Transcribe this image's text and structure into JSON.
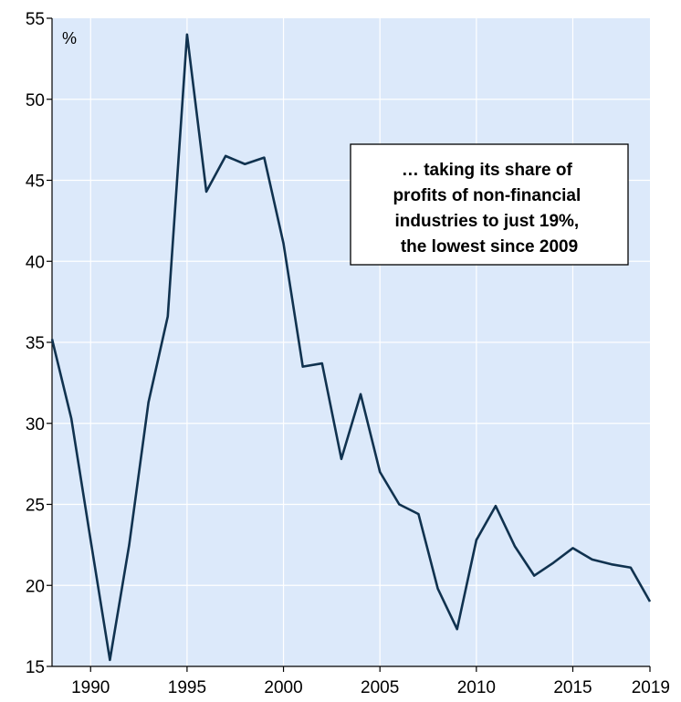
{
  "chart_data": {
    "type": "line",
    "unit": "%",
    "colors": {
      "plot_background": "#dce9fa",
      "line": "#10324f",
      "grid": "#ffffff"
    },
    "x": [
      1988,
      1989,
      1990,
      1991,
      1992,
      1993,
      1994,
      1995,
      1996,
      1997,
      1998,
      1999,
      2000,
      2001,
      2002,
      2003,
      2004,
      2005,
      2006,
      2007,
      2008,
      2009,
      2010,
      2011,
      2012,
      2013,
      2014,
      2015,
      2016,
      2017,
      2018,
      2019
    ],
    "series": [
      {
        "values": [
          35.2,
          30.3,
          22.8,
          15.4,
          22.5,
          31.3,
          36.6,
          54.0,
          44.3,
          46.5,
          46.0,
          46.4,
          41.1,
          33.5,
          33.7,
          27.8,
          31.8,
          27.0,
          25.0,
          24.4,
          19.8,
          17.3,
          22.8,
          24.9,
          22.4,
          20.6,
          21.4,
          22.3,
          21.6,
          21.3,
          21.1,
          19.0
        ]
      }
    ],
    "xlim": [
      1988,
      2019
    ],
    "ylim": [
      15,
      55
    ],
    "yticks": [
      15,
      20,
      25,
      30,
      35,
      40,
      45,
      50,
      55
    ],
    "xticks": [
      1990,
      1995,
      2000,
      2005,
      2010,
      2015,
      2019
    ],
    "xgrid": [
      1990,
      1995,
      2000,
      2005,
      2010,
      2015
    ],
    "grid": true,
    "annotation": {
      "lines": [
        "… taking its share of",
        "profits of non-financial",
        "industries to just 19%,",
        "the lowest since 2009"
      ]
    }
  }
}
